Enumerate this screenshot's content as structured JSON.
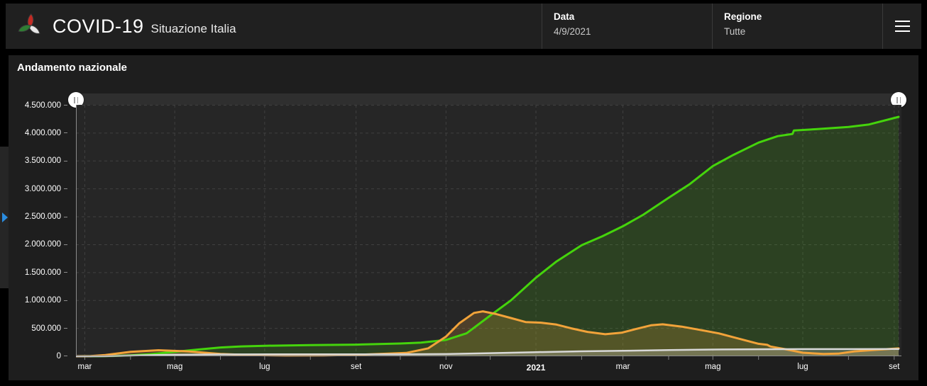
{
  "header": {
    "title": "COVID-19",
    "subtitle": "Situazione Italia",
    "logo_colors": {
      "red": "#c22a23",
      "green": "#2f7d33",
      "white": "#e6e6e6"
    },
    "fields": [
      {
        "label": "Data",
        "value": "4/9/2021"
      },
      {
        "label": "Regione",
        "value": "Tutte"
      }
    ],
    "menu_icon": "hamburger"
  },
  "side_tab": {
    "icon": "chevron-right",
    "arrow_color": "#2a8cdf"
  },
  "panel": {
    "title": "Andamento nazionale"
  },
  "slider": {
    "handle_glyph": "||"
  },
  "chart_data": {
    "type": "area",
    "title": "Andamento nazionale",
    "grid": "dashed",
    "legend": "none",
    "x_start": "2020-02-24",
    "x_end": "2021-09-04",
    "ylim": [
      0,
      4500000
    ],
    "y_tick_step": 500000,
    "y_tick_labels": [
      "0",
      "500.000",
      "1.000.000",
      "1.500.000",
      "2.000.000",
      "2.500.000",
      "3.000.000",
      "3.500.000",
      "4.000.000",
      "4.500.000"
    ],
    "x_tick_dates": [
      "2020-03-01",
      "2020-05-01",
      "2020-07-01",
      "2020-09-01",
      "2020-11-01",
      "2021-01-01",
      "2021-03-01",
      "2021-05-01",
      "2021-07-01",
      "2021-09-01"
    ],
    "x_tick_labels": [
      "mar",
      "mag",
      "lug",
      "set",
      "nov",
      "2021",
      "mar",
      "mag",
      "lug",
      "set"
    ],
    "x_bold_label": "2021",
    "series": [
      {
        "name": "serie-verde",
        "color": "#45d40c",
        "fill": "rgba(80,212,20,0.16)",
        "line_width": 3,
        "points": [
          [
            "2020-02-24",
            0
          ],
          [
            "2020-03-10",
            1000
          ],
          [
            "2020-03-20",
            5100
          ],
          [
            "2020-04-01",
            16850
          ],
          [
            "2020-04-15",
            38100
          ],
          [
            "2020-05-01",
            79000
          ],
          [
            "2020-05-15",
            115300
          ],
          [
            "2020-06-01",
            158000
          ],
          [
            "2020-06-15",
            177000
          ],
          [
            "2020-07-01",
            187600
          ],
          [
            "2020-08-01",
            200600
          ],
          [
            "2020-09-01",
            208000
          ],
          [
            "2020-10-01",
            228000
          ],
          [
            "2020-10-15",
            245000
          ],
          [
            "2020-11-01",
            292400
          ],
          [
            "2020-11-15",
            411400
          ],
          [
            "2020-12-01",
            730000
          ],
          [
            "2020-12-15",
            1000000
          ],
          [
            "2021-01-01",
            1408000
          ],
          [
            "2021-01-15",
            1700000
          ],
          [
            "2021-02-01",
            1990000
          ],
          [
            "2021-02-15",
            2150000
          ],
          [
            "2021-03-01",
            2330000
          ],
          [
            "2021-03-15",
            2540000
          ],
          [
            "2021-04-01",
            2840000
          ],
          [
            "2021-04-15",
            3080000
          ],
          [
            "2021-05-01",
            3410000
          ],
          [
            "2021-05-15",
            3610000
          ],
          [
            "2021-06-01",
            3830000
          ],
          [
            "2021-06-14",
            3945000
          ],
          [
            "2021-06-24",
            3985000
          ],
          [
            "2021-06-25",
            4045000
          ],
          [
            "2021-07-10",
            4070000
          ],
          [
            "2021-08-01",
            4110000
          ],
          [
            "2021-08-15",
            4155000
          ],
          [
            "2021-09-04",
            4290000
          ]
        ]
      },
      {
        "name": "serie-arancione",
        "color": "#f2a33a",
        "fill": "rgba(242,163,58,0.20)",
        "line_width": 3,
        "points": [
          [
            "2020-02-24",
            200
          ],
          [
            "2020-03-05",
            3300
          ],
          [
            "2020-03-15",
            23000
          ],
          [
            "2020-04-01",
            80000
          ],
          [
            "2020-04-20",
            108000
          ],
          [
            "2020-05-10",
            87000
          ],
          [
            "2020-06-01",
            42000
          ],
          [
            "2020-06-20",
            21000
          ],
          [
            "2020-07-15",
            12500
          ],
          [
            "2020-08-10",
            13800
          ],
          [
            "2020-09-01",
            26000
          ],
          [
            "2020-09-20",
            45000
          ],
          [
            "2020-10-05",
            60000
          ],
          [
            "2020-10-20",
            142000
          ],
          [
            "2020-11-01",
            352000
          ],
          [
            "2020-11-10",
            590000
          ],
          [
            "2020-11-20",
            777000
          ],
          [
            "2020-11-26",
            805000
          ],
          [
            "2020-12-05",
            757000
          ],
          [
            "2020-12-15",
            686000
          ],
          [
            "2020-12-25",
            613000
          ],
          [
            "2021-01-05",
            600000
          ],
          [
            "2021-01-15",
            568000
          ],
          [
            "2021-01-25",
            500000
          ],
          [
            "2021-02-05",
            437000
          ],
          [
            "2021-02-17",
            395000
          ],
          [
            "2021-02-28",
            422000
          ],
          [
            "2021-03-10",
            490000
          ],
          [
            "2021-03-20",
            555000
          ],
          [
            "2021-03-28",
            573000
          ],
          [
            "2021-04-10",
            530000
          ],
          [
            "2021-04-25",
            460000
          ],
          [
            "2021-05-05",
            410000
          ],
          [
            "2021-05-15",
            340000
          ],
          [
            "2021-06-01",
            223000
          ],
          [
            "2021-06-07",
            205000
          ],
          [
            "2021-06-09",
            175000
          ],
          [
            "2021-06-20",
            122000
          ],
          [
            "2021-07-01",
            63000
          ],
          [
            "2021-07-15",
            42500
          ],
          [
            "2021-07-25",
            47000
          ],
          [
            "2021-08-05",
            87000
          ],
          [
            "2021-08-20",
            116000
          ],
          [
            "2021-09-04",
            141000
          ]
        ]
      },
      {
        "name": "serie-grigia",
        "color": "#d8d8d8",
        "fill": "rgba(216,216,216,0.25)",
        "line_width": 2.5,
        "points": [
          [
            "2020-02-24",
            7
          ],
          [
            "2020-03-15",
            1800
          ],
          [
            "2020-04-01",
            13200
          ],
          [
            "2020-05-01",
            28200
          ],
          [
            "2020-06-01",
            33400
          ],
          [
            "2020-08-01",
            35200
          ],
          [
            "2020-10-01",
            36000
          ],
          [
            "2020-11-01",
            38800
          ],
          [
            "2020-12-01",
            55600
          ],
          [
            "2021-01-01",
            74200
          ],
          [
            "2021-02-01",
            88800
          ],
          [
            "2021-03-01",
            97700
          ],
          [
            "2021-04-01",
            110300
          ],
          [
            "2021-05-01",
            120800
          ],
          [
            "2021-06-01",
            126100
          ],
          [
            "2021-07-01",
            127600
          ],
          [
            "2021-08-01",
            128100
          ],
          [
            "2021-09-04",
            129400
          ]
        ]
      }
    ]
  }
}
